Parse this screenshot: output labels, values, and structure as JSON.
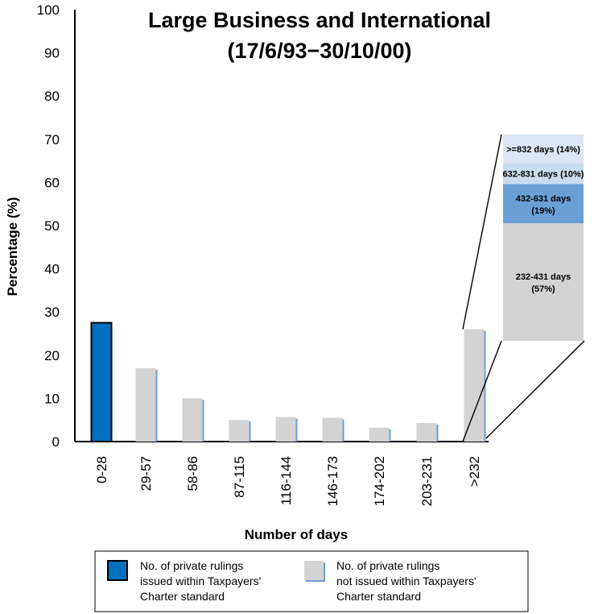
{
  "chart_data": {
    "type": "bar",
    "title": [
      "Large Business and International",
      "(17/6/93−30/10/00)"
    ],
    "xlabel": "Number of days",
    "ylabel": "Percentage (%)",
    "ylim": [
      0,
      100
    ],
    "yticks": [
      0,
      10,
      20,
      30,
      40,
      50,
      60,
      70,
      80,
      90,
      100
    ],
    "categories": [
      "0-28",
      "29-57",
      "58-86",
      "87-115",
      "116-144",
      "146-173",
      "174-202",
      "203-231",
      ">232"
    ],
    "series": [
      {
        "name": "No. of private rulings issued within Taxpayers' Charter standard",
        "color": "#0070C0",
        "values": [
          27.5,
          null,
          null,
          null,
          null,
          null,
          null,
          null,
          null
        ]
      },
      {
        "name": "No. of private rulings not issued within Taxpayers' Charter standard",
        "color": "#D3D3D3",
        "values": [
          null,
          17,
          10,
          5,
          5.7,
          5.5,
          3.2,
          4.3,
          26
        ]
      }
    ],
    "breakdown": {
      "category": ">232",
      "segments": [
        {
          "label": "232-431 days",
          "pct_label": "(57%)",
          "value": 57,
          "color": "#D3D3D3"
        },
        {
          "label": "432-631 days",
          "pct_label": "(19%)",
          "value": 19,
          "color": "#6A9FD6"
        },
        {
          "label": "632-831 days (10%)",
          "pct_label": "",
          "value": 10,
          "color": "#C9DDF1"
        },
        {
          "label": ">=832 days (14%)",
          "pct_label": "",
          "value": 14,
          "color": "#DCE6F4"
        }
      ]
    },
    "legend": [
      {
        "lines": [
          "No. of private rulings",
          "issued within Taxpayers'",
          "Charter standard"
        ],
        "color": "#0070C0"
      },
      {
        "lines": [
          "No. of private rulings",
          "not issued within Taxpayers'",
          "Charter standard"
        ],
        "color": "#D3D3D3"
      }
    ],
    "legend_position": "bottom",
    "grid": false
  }
}
